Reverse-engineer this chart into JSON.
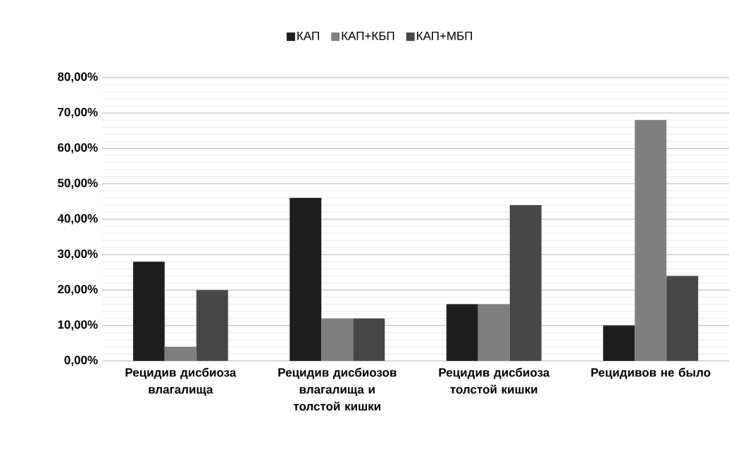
{
  "chart_data": {
    "type": "bar",
    "categories": [
      "Рецидив дисбиоза влагалища",
      "Рецидив дисбиозов влагалища и толстой кишки",
      "Рецидив дисбиоза толстой кишки",
      "Рецидивов не было"
    ],
    "series": [
      {
        "name": "КАП",
        "color": "#1e1e1e",
        "values": [
          28,
          46,
          16,
          10
        ]
      },
      {
        "name": "КАП+КБП",
        "color": "#7f7f7f",
        "values": [
          4,
          12,
          16,
          68
        ]
      },
      {
        "name": "КАП+МБП",
        "color": "#474747",
        "values": [
          20,
          12,
          44,
          24
        ]
      }
    ],
    "ylim": [
      0,
      80
    ],
    "yticks": [
      {
        "value": 0,
        "label": "0,00%"
      },
      {
        "value": 10,
        "label": "10,00%"
      },
      {
        "value": 20,
        "label": "20,00%"
      },
      {
        "value": 30,
        "label": "30,00%"
      },
      {
        "value": 40,
        "label": "40,00%"
      },
      {
        "value": 50,
        "label": "50,00%"
      },
      {
        "value": 60,
        "label": "60,00%"
      },
      {
        "value": 70,
        "label": "70,00%"
      },
      {
        "value": 80,
        "label": "80,00%"
      }
    ],
    "grid": "y",
    "legend": "top"
  }
}
